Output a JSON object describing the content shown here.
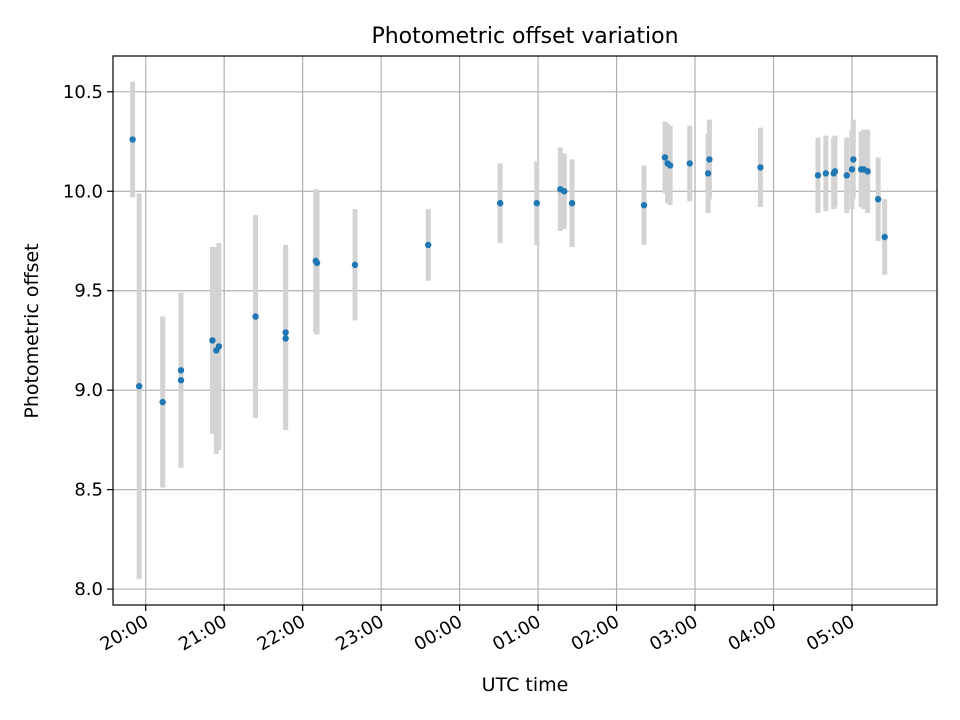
{
  "chart_data": {
    "type": "scatter",
    "title": "Photometric offset variation",
    "xlabel": "UTC time",
    "ylabel": "Photometric offset",
    "x_unit": "UTC",
    "xlim": [
      "19:35",
      "06:05"
    ],
    "ylim": [
      7.92,
      10.68
    ],
    "x_ticks": [
      "20:00",
      "21:00",
      "22:00",
      "23:00",
      "00:00",
      "01:00",
      "02:00",
      "03:00",
      "04:00",
      "05:00"
    ],
    "y_ticks": [
      "8.0",
      "8.5",
      "9.0",
      "9.5",
      "10.0",
      "10.5"
    ],
    "y_tick_values": [
      8.0,
      8.5,
      9.0,
      9.5,
      10.0,
      10.5
    ],
    "grid": true,
    "point_color": "#1f77b4",
    "errorbar_color": "#d3d3d3",
    "points": [
      {
        "x": "19:50",
        "y": 10.26,
        "err": 0.29
      },
      {
        "x": "19:55",
        "y": 9.02,
        "err": 0.97
      },
      {
        "x": "20:13",
        "y": 8.94,
        "err": 0.43
      },
      {
        "x": "20:27",
        "y": 9.1,
        "err": 0.39
      },
      {
        "x": "20:27",
        "y": 9.05,
        "err": 0.44
      },
      {
        "x": "20:51",
        "y": 9.25,
        "err": 0.47
      },
      {
        "x": "20:54",
        "y": 9.2,
        "err": 0.52
      },
      {
        "x": "20:56",
        "y": 9.22,
        "err": 0.52
      },
      {
        "x": "21:24",
        "y": 9.37,
        "err": 0.51
      },
      {
        "x": "21:47",
        "y": 9.29,
        "err": 0.44
      },
      {
        "x": "21:47",
        "y": 9.26,
        "err": 0.46
      },
      {
        "x": "22:10",
        "y": 9.65,
        "err": 0.36
      },
      {
        "x": "22:11",
        "y": 9.64,
        "err": 0.36
      },
      {
        "x": "22:40",
        "y": 9.63,
        "err": 0.28
      },
      {
        "x": "23:36",
        "y": 9.73,
        "err": 0.18
      },
      {
        "x": "00:31",
        "y": 9.94,
        "err": 0.2
      },
      {
        "x": "00:59",
        "y": 9.94,
        "err": 0.21
      },
      {
        "x": "01:17",
        "y": 10.01,
        "err": 0.21
      },
      {
        "x": "01:20",
        "y": 10.0,
        "err": 0.19
      },
      {
        "x": "01:26",
        "y": 9.94,
        "err": 0.22
      },
      {
        "x": "02:21",
        "y": 9.93,
        "err": 0.2
      },
      {
        "x": "02:37",
        "y": 10.17,
        "err": 0.18
      },
      {
        "x": "02:39",
        "y": 10.14,
        "err": 0.2
      },
      {
        "x": "02:41",
        "y": 10.13,
        "err": 0.2
      },
      {
        "x": "02:56",
        "y": 10.14,
        "err": 0.19
      },
      {
        "x": "03:10",
        "y": 10.09,
        "err": 0.2
      },
      {
        "x": "03:11",
        "y": 10.16,
        "err": 0.2
      },
      {
        "x": "03:50",
        "y": 10.12,
        "err": 0.2
      },
      {
        "x": "04:34",
        "y": 10.08,
        "err": 0.19
      },
      {
        "x": "04:40",
        "y": 10.09,
        "err": 0.19
      },
      {
        "x": "04:46",
        "y": 10.09,
        "err": 0.18
      },
      {
        "x": "04:47",
        "y": 10.1,
        "err": 0.18
      },
      {
        "x": "04:56",
        "y": 10.08,
        "err": 0.19
      },
      {
        "x": "05:00",
        "y": 10.11,
        "err": 0.2
      },
      {
        "x": "05:01",
        "y": 10.16,
        "err": 0.2
      },
      {
        "x": "05:07",
        "y": 10.11,
        "err": 0.19
      },
      {
        "x": "05:09",
        "y": 10.11,
        "err": 0.2
      },
      {
        "x": "05:12",
        "y": 10.1,
        "err": 0.21
      },
      {
        "x": "05:20",
        "y": 9.96,
        "err": 0.21
      },
      {
        "x": "05:25",
        "y": 9.77,
        "err": 0.19
      }
    ]
  }
}
